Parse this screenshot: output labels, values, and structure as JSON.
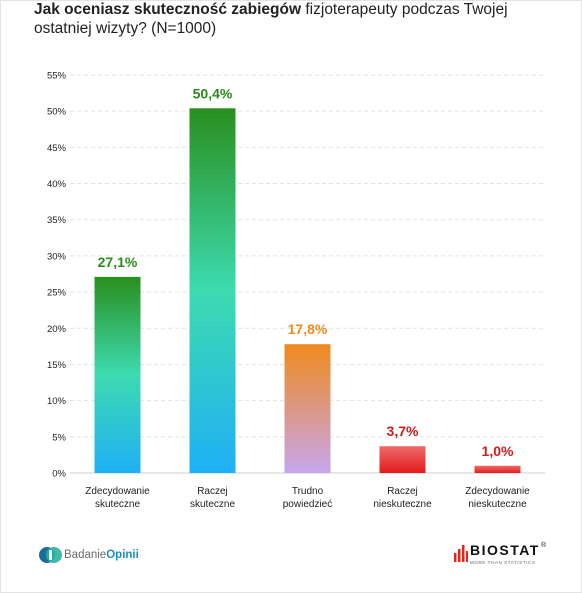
{
  "title": {
    "bold": "Jak oceniasz skuteczność zabiegów",
    "rest": " fizjoterapeuty podczas Twojej ostatniej wizyty? (N=1000)"
  },
  "chart_data": {
    "type": "bar",
    "categories": [
      [
        "Zdecydowanie",
        "skuteczne"
      ],
      [
        "Raczej",
        "skuteczne"
      ],
      [
        "Trudno",
        "powiedzieć"
      ],
      [
        "Raczej",
        "nieskuteczne"
      ],
      [
        "Zdecydowanie",
        "nieskuteczne"
      ]
    ],
    "values": [
      27.1,
      50.4,
      17.8,
      3.7,
      1.0
    ],
    "data_labels": [
      "27,1%",
      "50,4%",
      "17,8%",
      "3,7%",
      "1,0%"
    ],
    "ylim": [
      0,
      55
    ],
    "yticks": [
      0,
      5,
      10,
      15,
      20,
      25,
      30,
      35,
      40,
      45,
      50,
      55
    ],
    "ytick_labels": [
      "0%",
      "5%",
      "10%",
      "15%",
      "20%",
      "25%",
      "30%",
      "35%",
      "40%",
      "45%",
      "50%",
      "55%"
    ],
    "grid": true,
    "bar_gradients": [
      [
        "#2a8f1e",
        "#3ddbb0",
        "#1fb0f5"
      ],
      [
        "#2a8f1e",
        "#3ddbb0",
        "#1fb0f5"
      ],
      [
        "#ef8a1c",
        "#c8a6ee"
      ],
      [
        "#f06a6a",
        "#e31b1b"
      ],
      [
        "#f06a6a",
        "#e31b1b"
      ]
    ],
    "label_colors": [
      "#2a8a1c",
      "#2a8a1c",
      "#f28b1e",
      "#d11a1a",
      "#d11a1a"
    ]
  },
  "footer": {
    "left_logo_text_1": "Badanie",
    "left_logo_text_2": "Opinii",
    "right_logo_text": "BIOSTAT",
    "right_logo_registered": "®",
    "right_logo_subtitle": "MORE THAN STATISTICS"
  }
}
